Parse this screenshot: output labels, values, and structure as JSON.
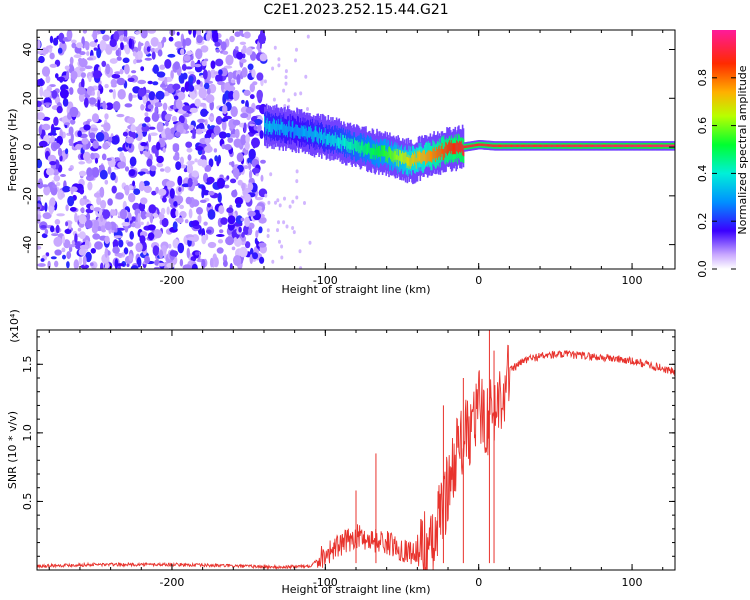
{
  "title": "C2E1.2023.252.15.44.G21",
  "chart_data": [
    {
      "type": "heatmap",
      "xlabel": "Height of straight line (km)",
      "ylabel": "Frequency (Hz)",
      "xlim": [
        -288,
        128
      ],
      "ylim": [
        -50,
        48
      ],
      "xticks": [
        -200,
        -100,
        0,
        100
      ],
      "yticks": [
        -40,
        -20,
        0,
        20,
        40
      ],
      "colorbar": {
        "label": "Normalized spectral amplitude",
        "range": [
          0,
          1
        ],
        "ticks": [
          0.0,
          0.2,
          0.4,
          0.6,
          0.8
        ]
      },
      "signal_trace": {
        "x": [
          -140,
          -120,
          -100,
          -80,
          -60,
          -45,
          -35,
          -20,
          -10,
          0,
          10,
          128
        ],
        "freq": [
          9,
          7,
          4,
          0,
          -3,
          -6,
          -4,
          -1,
          0,
          1,
          0.5,
          0.5
        ],
        "amplitude": [
          0.35,
          0.3,
          0.35,
          0.45,
          0.55,
          0.7,
          0.75,
          0.85,
          0.9,
          0.9,
          0.9,
          0.95
        ]
      },
      "noise_region": {
        "x_from": -288,
        "x_to": -140,
        "amplitude": 0.15
      }
    },
    {
      "type": "line",
      "xlabel": "Height of straight line (km)",
      "ylabel": "SNR (10 * v/v)",
      "y_scale_label": "(x10⁴)",
      "xlim": [
        -288,
        128
      ],
      "ylim": [
        0,
        1.75
      ],
      "xticks": [
        -200,
        -100,
        0,
        100
      ],
      "yticks": [
        0.5,
        1.0,
        1.5
      ],
      "color": "#e8332d",
      "series": [
        {
          "x": [
            -288,
            -250,
            -200,
            -160,
            -130,
            -110,
            -100,
            -90,
            -80,
            -70,
            -60,
            -50,
            -40,
            -35,
            -30,
            -25,
            -20,
            -15,
            -10,
            -5,
            0,
            5,
            10,
            15,
            20,
            30,
            40,
            50,
            60,
            70,
            80,
            90,
            100,
            110,
            120,
            128
          ],
          "values": [
            0.03,
            0.04,
            0.04,
            0.03,
            0.02,
            0.03,
            0.12,
            0.18,
            0.25,
            0.22,
            0.2,
            0.15,
            0.12,
            0.18,
            0.15,
            0.4,
            0.6,
            0.85,
            0.95,
            1.0,
            1.2,
            1.1,
            1.15,
            1.3,
            1.45,
            1.53,
            1.56,
            1.57,
            1.57,
            1.56,
            1.55,
            1.54,
            1.52,
            1.5,
            1.47,
            1.44
          ]
        }
      ],
      "spikes": [
        {
          "x": -80,
          "value": 0.58
        },
        {
          "x": -67,
          "value": 0.85
        },
        {
          "x": -23,
          "value": 1.2
        },
        {
          "x": -10,
          "value": 1.4
        },
        {
          "x": 7,
          "value": 1.75
        },
        {
          "x": 10,
          "value": 1.6
        }
      ]
    }
  ]
}
